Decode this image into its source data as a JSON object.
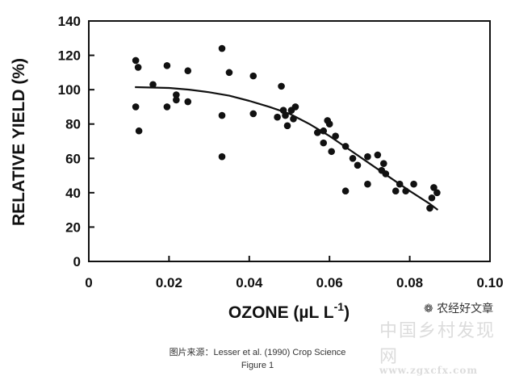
{
  "chart_data": {
    "type": "scatter",
    "title": "",
    "xlabel": "OZONE (µL L",
    "xlabel_superscript": "-1",
    "xlabel_close": ")",
    "ylabel": "RELATIVE YIELD (%)",
    "xlim": [
      0,
      0.1
    ],
    "ylim": [
      0,
      140
    ],
    "xticks": [
      "0",
      "0.02",
      "0.04",
      "0.06",
      "0.08",
      "0.10"
    ],
    "xtick_values": [
      0,
      0.02,
      0.04,
      0.06,
      0.08,
      0.1
    ],
    "yticks": [
      "0",
      "20",
      "40",
      "60",
      "80",
      "100",
      "120",
      "140"
    ],
    "ytick_values": [
      0,
      20,
      40,
      60,
      80,
      100,
      120,
      140
    ],
    "grid": false,
    "points": [
      {
        "x": 0.0117,
        "y": 117
      },
      {
        "x": 0.0123,
        "y": 113
      },
      {
        "x": 0.0117,
        "y": 90
      },
      {
        "x": 0.0125,
        "y": 76
      },
      {
        "x": 0.016,
        "y": 103
      },
      {
        "x": 0.0195,
        "y": 114
      },
      {
        "x": 0.0195,
        "y": 90
      },
      {
        "x": 0.0218,
        "y": 97
      },
      {
        "x": 0.0218,
        "y": 94
      },
      {
        "x": 0.0247,
        "y": 111
      },
      {
        "x": 0.0247,
        "y": 93
      },
      {
        "x": 0.0332,
        "y": 124
      },
      {
        "x": 0.035,
        "y": 110
      },
      {
        "x": 0.0332,
        "y": 85
      },
      {
        "x": 0.0332,
        "y": 61
      },
      {
        "x": 0.041,
        "y": 108
      },
      {
        "x": 0.041,
        "y": 86
      },
      {
        "x": 0.047,
        "y": 84
      },
      {
        "x": 0.048,
        "y": 102
      },
      {
        "x": 0.0485,
        "y": 88
      },
      {
        "x": 0.049,
        "y": 85
      },
      {
        "x": 0.0495,
        "y": 79
      },
      {
        "x": 0.0505,
        "y": 88
      },
      {
        "x": 0.0515,
        "y": 90
      },
      {
        "x": 0.051,
        "y": 83
      },
      {
        "x": 0.057,
        "y": 75
      },
      {
        "x": 0.0585,
        "y": 76
      },
      {
        "x": 0.0585,
        "y": 69
      },
      {
        "x": 0.0595,
        "y": 82
      },
      {
        "x": 0.06,
        "y": 80
      },
      {
        "x": 0.0605,
        "y": 64
      },
      {
        "x": 0.0615,
        "y": 73
      },
      {
        "x": 0.064,
        "y": 67
      },
      {
        "x": 0.064,
        "y": 41
      },
      {
        "x": 0.0658,
        "y": 60
      },
      {
        "x": 0.067,
        "y": 56
      },
      {
        "x": 0.0695,
        "y": 61
      },
      {
        "x": 0.0695,
        "y": 45
      },
      {
        "x": 0.072,
        "y": 62
      },
      {
        "x": 0.073,
        "y": 53
      },
      {
        "x": 0.0735,
        "y": 57
      },
      {
        "x": 0.074,
        "y": 51
      },
      {
        "x": 0.0765,
        "y": 41
      },
      {
        "x": 0.0775,
        "y": 45
      },
      {
        "x": 0.079,
        "y": 41
      },
      {
        "x": 0.081,
        "y": 45
      },
      {
        "x": 0.085,
        "y": 31
      },
      {
        "x": 0.0855,
        "y": 37
      },
      {
        "x": 0.086,
        "y": 43
      },
      {
        "x": 0.0868,
        "y": 40
      }
    ],
    "fit_line": {
      "x": [
        0.0115,
        0.02,
        0.025,
        0.03,
        0.035,
        0.04,
        0.045,
        0.05,
        0.055,
        0.06,
        0.065,
        0.07,
        0.075,
        0.08,
        0.085,
        0.087
      ],
      "y": [
        101.5,
        101,
        100,
        98.5,
        96.5,
        93.5,
        90,
        86,
        80,
        73,
        65,
        57,
        49,
        41,
        33.5,
        30
      ]
    }
  },
  "captions": {
    "source": "图片来源：Lesser et al. (1990) Crop Science",
    "figure": "Figure 1"
  },
  "watermarks": {
    "wechat_account": "农经好文章",
    "site_cn": "中国乡村发现网",
    "site_url": "www.zgxcfx.com"
  }
}
